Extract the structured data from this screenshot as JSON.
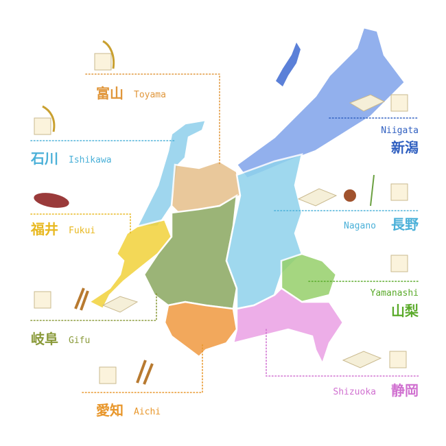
{
  "regions": [
    {
      "kanji": "富山",
      "romaji": "Toyama"
    },
    {
      "kanji": "石川",
      "romaji": "Ishikawa"
    },
    {
      "kanji": "福井",
      "romaji": "Fukui"
    },
    {
      "kanji": "岐阜",
      "romaji": "Gifu"
    },
    {
      "kanji": "愛知",
      "romaji": "Aichi"
    },
    {
      "kanji": "新潟",
      "romaji": "Niigata"
    },
    {
      "kanji": "長野",
      "romaji": "Nagano"
    },
    {
      "kanji": "山梨",
      "romaji": "Yamanashi"
    },
    {
      "kanji": "静岡",
      "romaji": "Shizuoka"
    }
  ]
}
